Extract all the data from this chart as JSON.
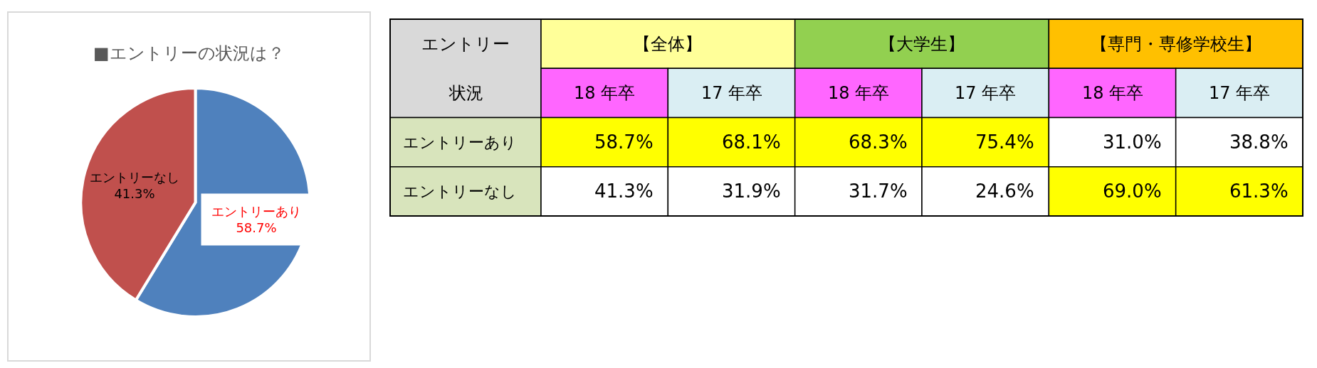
{
  "chart_data": [
    {
      "type": "pie",
      "title": "■エントリーの状況は？",
      "categories": [
        "エントリーあり",
        "エントリーなし"
      ],
      "values": [
        58.7,
        41.3
      ],
      "value_labels": [
        "58.7%",
        "41.3%"
      ],
      "colors": [
        "#4f81bd",
        "#c0504d"
      ]
    },
    {
      "type": "heatmap",
      "ylabel": "エントリー状況",
      "annotations": [
        "【全体】",
        "【大学生】",
        "【専門・専修学校生】"
      ],
      "categories": [
        "18 年卒",
        "17 年卒",
        "18 年卒",
        "17 年卒",
        "18 年卒",
        "17 年卒"
      ],
      "y_categories": [
        "エントリーあり",
        "エントリーなし"
      ],
      "cells": [
        [
          58.7,
          68.1,
          68.3,
          75.4,
          31.0,
          38.8
        ],
        [
          41.3,
          31.9,
          31.7,
          24.6,
          69.0,
          61.3
        ]
      ],
      "cell_labels": [
        [
          "58.7%",
          "68.1%",
          "68.3%",
          "75.4%",
          "31.0%",
          "38.8%"
        ],
        [
          "41.3%",
          "31.9%",
          "31.7%",
          "24.6%",
          "69.0%",
          "61.3%"
        ]
      ],
      "colors": [
        [
          "#ffff00",
          "#ffff00",
          "#ffff00",
          "#ffff00",
          "#ffffff",
          "#ffffff"
        ],
        [
          "#ffffff",
          "#ffffff",
          "#ffffff",
          "#ffffff",
          "#ffff00",
          "#ffff00"
        ]
      ]
    }
  ]
}
